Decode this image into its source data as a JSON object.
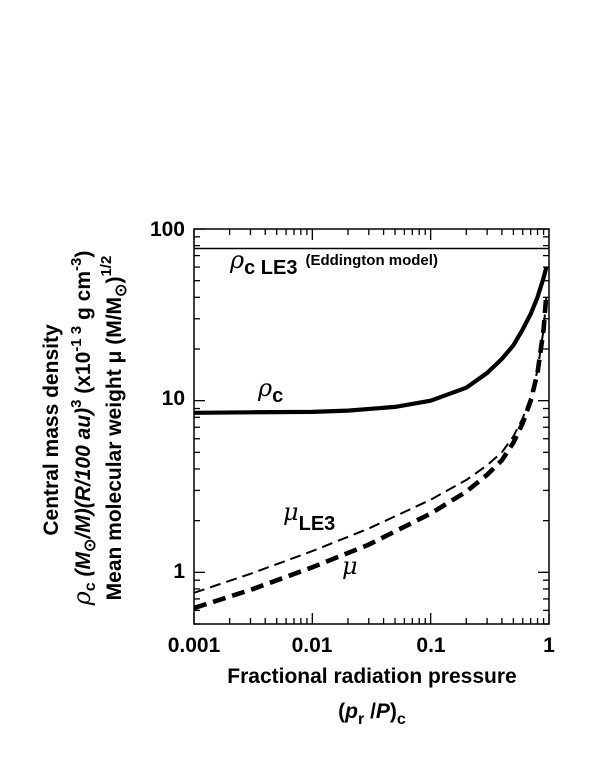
{
  "chart_data": {
    "type": "line",
    "xscale": "log",
    "yscale": "log",
    "xlim": [
      0.001,
      1
    ],
    "ylim": [
      0.5,
      100
    ],
    "xticks": [
      {
        "value": 0.001,
        "label": "0.001"
      },
      {
        "value": 0.01,
        "label": "0.01"
      },
      {
        "value": 0.1,
        "label": "0.1"
      },
      {
        "value": 1,
        "label": "1"
      }
    ],
    "yticks": [
      {
        "value": 1,
        "label": "1"
      },
      {
        "value": 10,
        "label": "10"
      },
      {
        "value": 100,
        "label": "100"
      }
    ],
    "xlabel_line1": "Fractional radiation pressure",
    "xlabel_line2": {
      "open": "(",
      "p": "p",
      "r": "r",
      "slash": " /",
      "P": "P",
      "close": ")",
      "c": "c"
    },
    "ylabel_line1": "Central mass density",
    "ylabel_line2": {
      "rho": "ρ",
      "c": "c",
      "m1": " (M",
      "sun": "⊙",
      "m2": "/M)(R/100 au)",
      "exp3": "3",
      "m3": "  (x10",
      "exp13": "-1 3",
      "m4": " g cm",
      "exp_3": "-3",
      "m5": ")"
    },
    "ylabel_line3": {
      "text": "Mean molecular weight  μ (M/M",
      "sun": "⊙",
      "close": ")",
      "exp": "1/2"
    },
    "series": [
      {
        "name": "ρc LE3 (Eddington model)",
        "style": "thin-solid",
        "x": [
          0.001,
          1
        ],
        "y": [
          77,
          77
        ]
      },
      {
        "name": "ρc",
        "style": "thick-solid",
        "x": [
          0.001,
          0.003,
          0.01,
          0.02,
          0.05,
          0.1,
          0.2,
          0.3,
          0.4,
          0.5,
          0.6,
          0.7,
          0.8,
          0.9,
          0.95
        ],
        "y": [
          8.5,
          8.55,
          8.6,
          8.75,
          9.2,
          10,
          11.9,
          14.5,
          17.5,
          21,
          26,
          32,
          40,
          52,
          60
        ]
      },
      {
        "name": "μLE3",
        "style": "thin-dashed",
        "x": [
          0.001,
          0.003,
          0.01,
          0.03,
          0.1,
          0.2,
          0.3,
          0.4,
          0.5,
          0.6,
          0.7,
          0.8,
          0.9,
          0.95
        ],
        "y": [
          0.76,
          0.98,
          1.33,
          1.8,
          2.65,
          3.45,
          4.2,
          5.0,
          6.2,
          7.9,
          10.5,
          15,
          26,
          40
        ]
      },
      {
        "name": "μ",
        "style": "thick-dashed",
        "x": [
          0.001,
          0.003,
          0.01,
          0.03,
          0.1,
          0.2,
          0.3,
          0.4,
          0.5,
          0.6,
          0.7,
          0.8,
          0.9,
          0.95
        ],
        "y": [
          0.62,
          0.79,
          1.07,
          1.45,
          2.2,
          2.95,
          3.7,
          4.5,
          5.7,
          7.4,
          10,
          14.5,
          26,
          42
        ]
      }
    ],
    "annotations": {
      "rho_le3": {
        "rho": "ρ",
        "sub": "c LE3",
        "note": "(Eddington model)"
      },
      "rho_c": {
        "rho": "ρ",
        "sub": "c"
      },
      "mu_le3": {
        "mu": "μ",
        "sub": "LE3"
      },
      "mu": {
        "mu": "μ"
      }
    }
  }
}
